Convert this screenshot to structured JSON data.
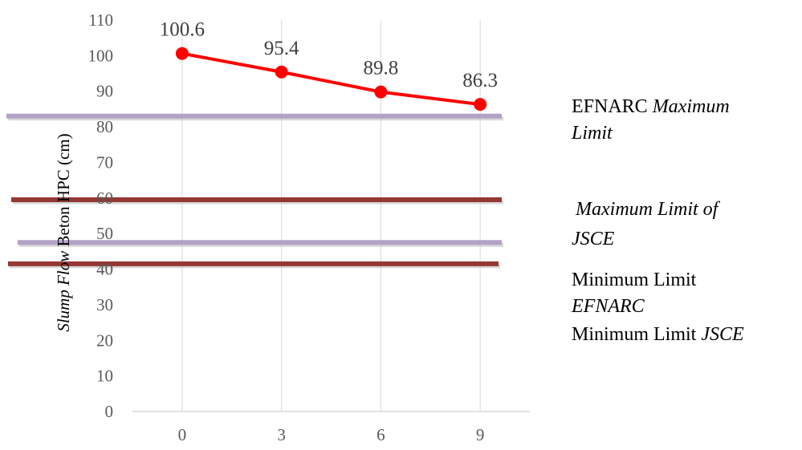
{
  "chart_data": {
    "type": "line",
    "title": "",
    "xlabel": "",
    "ylabel": {
      "italic": "Slump Flow",
      "normal": " Beton HPC (cm)"
    },
    "categories": [
      "0",
      "3",
      "6",
      "9"
    ],
    "ylim": [
      0,
      110
    ],
    "yticks": [
      0,
      10,
      20,
      30,
      40,
      50,
      60,
      70,
      80,
      90,
      100,
      110
    ],
    "grid": {
      "vertical": true,
      "horizontal": false
    },
    "series": [
      {
        "values": [
          100.6,
          95.4,
          89.8,
          86.3
        ],
        "color": "#ff0000",
        "data_labels": [
          "100.6",
          "95.4",
          "89.8",
          "86.3"
        ]
      }
    ],
    "reference_lines": [
      {
        "name": "EFNARC Maximum Limit",
        "value": 83,
        "color": "#b3a2c7"
      },
      {
        "name": "Maximum Limit of JSCE",
        "value": 59.5,
        "color": "#953735"
      },
      {
        "name": "Minimum Limit EFNARC",
        "value": 47.5,
        "color": "#b3a2c7"
      },
      {
        "name": "Minimum Limit JSCE",
        "value": 41.5,
        "color": "#953735"
      }
    ]
  },
  "notes": {
    "efnarc_max": {
      "normal": "EFNARC ",
      "italic": "Maximum",
      "line2": "Limit"
    },
    "jsce_max": {
      "line1": "Maximum Limit of",
      "line2": "JSCE"
    },
    "efnarc_min": {
      "line1": "Minimum Limit",
      "line2": "EFNARC"
    },
    "jsce_min": {
      "normal": "Minimum Limit ",
      "italic": "JSCE"
    }
  }
}
